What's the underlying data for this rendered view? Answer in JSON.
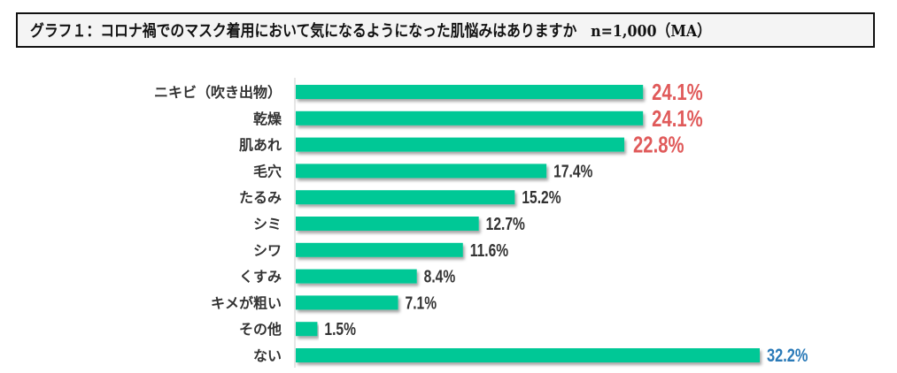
{
  "chart_data": {
    "type": "bar",
    "orientation": "horizontal",
    "title": "グラフ１：コロナ禍でのマスク着用において気になるようになった肌悩みはありますか　n=1,000（MA）",
    "categories": [
      "ニキビ（吹き出物）",
      "乾燥",
      "肌あれ",
      "毛穴",
      "たるみ",
      "シミ",
      "シワ",
      "くすみ",
      "キメが粗い",
      "その他",
      "ない"
    ],
    "values": [
      24.1,
      24.1,
      22.8,
      17.4,
      15.2,
      12.7,
      11.6,
      8.4,
      7.1,
      1.5,
      32.2
    ],
    "value_labels": [
      "24.1%",
      "24.1%",
      "22.8%",
      "17.4%",
      "15.2%",
      "12.7%",
      "11.6%",
      "8.4%",
      "7.1%",
      "1.5%",
      "32.2%"
    ],
    "label_colors": [
      "#e05a5a",
      "#e05a5a",
      "#e05a5a",
      "#333333",
      "#333333",
      "#333333",
      "#333333",
      "#333333",
      "#333333",
      "#333333",
      "#2a7ab8"
    ],
    "label_emphasis": [
      true,
      true,
      true,
      false,
      false,
      false,
      false,
      false,
      false,
      false,
      true
    ],
    "bar_color": "#00c896",
    "xlabel": "",
    "ylabel": "",
    "xlim": [
      0,
      32.2
    ],
    "grid": false,
    "legend": "none"
  }
}
